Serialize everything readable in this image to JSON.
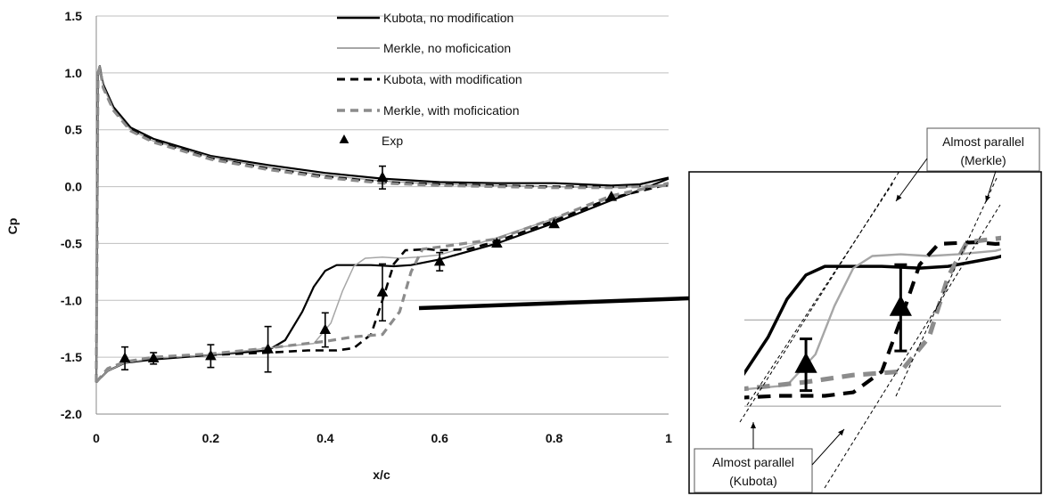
{
  "chart_data": {
    "type": "line",
    "title": "",
    "xlabel": "x/c",
    "ylabel": "Cp",
    "xlim": [
      0,
      1
    ],
    "ylim": [
      -2.0,
      1.5
    ],
    "x_ticks": [
      "0",
      "0.2",
      "0.4",
      "0.6",
      "0.8",
      "1"
    ],
    "y_ticks": [
      "1.5",
      "1.0",
      "0.5",
      "0.0",
      "-0.5",
      "-1.0",
      "-1.5",
      "-2.0"
    ],
    "grid": "horizontal",
    "legend_position": "top-center",
    "colors": {
      "kubota": "#000000",
      "merkle_solid": "#a6a6a6",
      "merkle_dashed": "#8c8c8c"
    },
    "series": [
      {
        "name": "Kubota, no modification",
        "style": "solid",
        "upper": [
          [
            0,
            -1.72
          ],
          [
            0.003,
            1.0
          ],
          [
            0.006,
            1.06
          ],
          [
            0.012,
            0.9
          ],
          [
            0.03,
            0.7
          ],
          [
            0.06,
            0.52
          ],
          [
            0.1,
            0.42
          ],
          [
            0.2,
            0.27
          ],
          [
            0.3,
            0.19
          ],
          [
            0.4,
            0.12
          ],
          [
            0.5,
            0.07
          ],
          [
            0.6,
            0.04
          ],
          [
            0.7,
            0.03
          ],
          [
            0.8,
            0.03
          ],
          [
            0.9,
            0.01
          ],
          [
            0.95,
            0.02
          ],
          [
            1.0,
            0.08
          ]
        ],
        "lower": [
          [
            0,
            -1.72
          ],
          [
            0.02,
            -1.62
          ],
          [
            0.05,
            -1.55
          ],
          [
            0.1,
            -1.52
          ],
          [
            0.2,
            -1.48
          ],
          [
            0.3,
            -1.44
          ],
          [
            0.33,
            -1.35
          ],
          [
            0.36,
            -1.1
          ],
          [
            0.38,
            -0.88
          ],
          [
            0.4,
            -0.74
          ],
          [
            0.42,
            -0.69
          ],
          [
            0.48,
            -0.69
          ],
          [
            0.52,
            -0.7
          ],
          [
            0.55,
            -0.69
          ],
          [
            0.6,
            -0.64
          ],
          [
            0.7,
            -0.5
          ],
          [
            0.8,
            -0.32
          ],
          [
            0.9,
            -0.12
          ],
          [
            0.95,
            -0.03
          ],
          [
            1.0,
            0.07
          ]
        ]
      },
      {
        "name": "Merkle, no moficication",
        "style": "solid",
        "upper": [
          [
            0,
            -1.72
          ],
          [
            0.003,
            1.0
          ],
          [
            0.006,
            1.06
          ],
          [
            0.012,
            0.88
          ],
          [
            0.03,
            0.68
          ],
          [
            0.06,
            0.5
          ],
          [
            0.1,
            0.4
          ],
          [
            0.2,
            0.26
          ],
          [
            0.3,
            0.17
          ],
          [
            0.4,
            0.1
          ],
          [
            0.5,
            0.05
          ],
          [
            0.6,
            0.02
          ],
          [
            0.7,
            0.01
          ],
          [
            0.8,
            0.0
          ],
          [
            0.9,
            -0.01
          ],
          [
            1.0,
            0.01
          ]
        ],
        "lower": [
          [
            0,
            -1.72
          ],
          [
            0.02,
            -1.62
          ],
          [
            0.05,
            -1.55
          ],
          [
            0.1,
            -1.51
          ],
          [
            0.2,
            -1.48
          ],
          [
            0.3,
            -1.42
          ],
          [
            0.38,
            -1.38
          ],
          [
            0.41,
            -1.2
          ],
          [
            0.43,
            -0.92
          ],
          [
            0.45,
            -0.7
          ],
          [
            0.47,
            -0.63
          ],
          [
            0.5,
            -0.62
          ],
          [
            0.53,
            -0.63
          ],
          [
            0.56,
            -0.62
          ],
          [
            0.6,
            -0.6
          ],
          [
            0.7,
            -0.45
          ],
          [
            0.8,
            -0.28
          ],
          [
            0.9,
            -0.1
          ],
          [
            1.0,
            0.03
          ]
        ]
      },
      {
        "name": "Kubota, with modification",
        "style": "dashed",
        "upper": [
          [
            0,
            -1.72
          ],
          [
            0.003,
            1.0
          ],
          [
            0.006,
            1.05
          ],
          [
            0.012,
            0.88
          ],
          [
            0.03,
            0.68
          ],
          [
            0.06,
            0.5
          ],
          [
            0.1,
            0.4
          ],
          [
            0.2,
            0.25
          ],
          [
            0.3,
            0.16
          ],
          [
            0.4,
            0.09
          ],
          [
            0.5,
            0.04
          ],
          [
            0.6,
            0.02
          ],
          [
            0.7,
            0.01
          ],
          [
            0.8,
            0.0
          ],
          [
            0.9,
            0.0
          ],
          [
            1.0,
            0.01
          ]
        ],
        "lower": [
          [
            0,
            -1.72
          ],
          [
            0.02,
            -1.6
          ],
          [
            0.05,
            -1.54
          ],
          [
            0.1,
            -1.51
          ],
          [
            0.2,
            -1.48
          ],
          [
            0.3,
            -1.46
          ],
          [
            0.37,
            -1.44
          ],
          [
            0.42,
            -1.44
          ],
          [
            0.45,
            -1.42
          ],
          [
            0.48,
            -1.3
          ],
          [
            0.5,
            -1.0
          ],
          [
            0.52,
            -0.68
          ],
          [
            0.54,
            -0.56
          ],
          [
            0.58,
            -0.55
          ],
          [
            0.6,
            -0.56
          ],
          [
            0.65,
            -0.55
          ],
          [
            0.7,
            -0.48
          ],
          [
            0.8,
            -0.3
          ],
          [
            0.9,
            -0.1
          ],
          [
            1.0,
            0.02
          ]
        ]
      },
      {
        "name": "Merkle, with moficication",
        "style": "dashed",
        "upper": [
          [
            0,
            -1.72
          ],
          [
            0.003,
            1.0
          ],
          [
            0.006,
            1.05
          ],
          [
            0.012,
            0.87
          ],
          [
            0.03,
            0.67
          ],
          [
            0.06,
            0.49
          ],
          [
            0.1,
            0.39
          ],
          [
            0.2,
            0.24
          ],
          [
            0.3,
            0.15
          ],
          [
            0.4,
            0.08
          ],
          [
            0.5,
            0.03
          ],
          [
            0.6,
            0.01
          ],
          [
            0.7,
            0.0
          ],
          [
            0.8,
            -0.01
          ],
          [
            0.9,
            -0.01
          ],
          [
            1.0,
            0.01
          ]
        ],
        "lower": [
          [
            0,
            -1.72
          ],
          [
            0.02,
            -1.6
          ],
          [
            0.05,
            -1.54
          ],
          [
            0.1,
            -1.5
          ],
          [
            0.2,
            -1.47
          ],
          [
            0.3,
            -1.42
          ],
          [
            0.4,
            -1.36
          ],
          [
            0.45,
            -1.32
          ],
          [
            0.5,
            -1.3
          ],
          [
            0.53,
            -1.1
          ],
          [
            0.55,
            -0.75
          ],
          [
            0.57,
            -0.55
          ],
          [
            0.6,
            -0.53
          ],
          [
            0.7,
            -0.46
          ],
          [
            0.8,
            -0.28
          ],
          [
            0.9,
            -0.08
          ],
          [
            1.0,
            0.03
          ]
        ]
      },
      {
        "name": "Exp",
        "style": "marker",
        "points": [
          {
            "x": 0.05,
            "y": -1.51,
            "err": 0.1
          },
          {
            "x": 0.1,
            "y": -1.51,
            "err": 0.05
          },
          {
            "x": 0.2,
            "y": -1.49,
            "err": 0.1
          },
          {
            "x": 0.3,
            "y": -1.43,
            "err": 0.2
          },
          {
            "x": 0.4,
            "y": -1.26,
            "err": 0.15
          },
          {
            "x": 0.5,
            "y": -0.93,
            "err": 0.25
          },
          {
            "x": 0.5,
            "y": 0.08,
            "err": 0.1
          },
          {
            "x": 0.6,
            "y": -0.66,
            "err": 0.08
          },
          {
            "x": 0.7,
            "y": -0.5,
            "err": 0.03
          },
          {
            "x": 0.8,
            "y": -0.33,
            "err": 0
          },
          {
            "x": 0.9,
            "y": -0.09,
            "err": 0
          }
        ]
      }
    ],
    "annotations": {
      "merkle_note": [
        "Almost parallel",
        "(Merkle)"
      ],
      "kubota_note": [
        "Almost parallel",
        "(Kubota)"
      ]
    }
  }
}
